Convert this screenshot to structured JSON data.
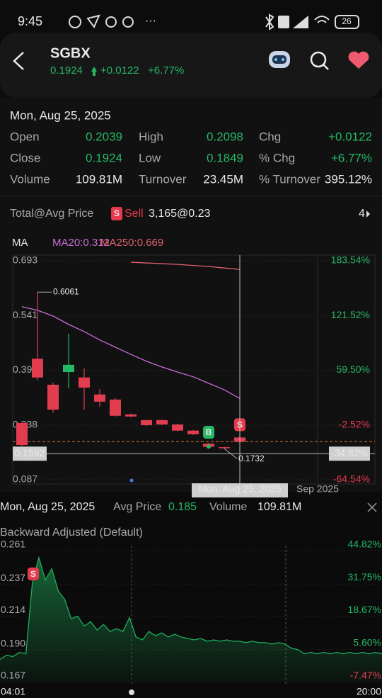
{
  "status_bar": {
    "time": "9:45",
    "battery": "26"
  },
  "header": {
    "symbol": "SGBX",
    "price": "0.1924",
    "change": "+0.0122",
    "change_pct": "+6.77%"
  },
  "quote": {
    "date": "Mon, Aug 25, 2025",
    "rows": [
      [
        [
          "Open",
          "0.2039"
        ],
        [
          "High",
          "0.2098"
        ],
        [
          "Chg",
          "+0.0122"
        ]
      ],
      [
        [
          "Close",
          "0.1924"
        ],
        [
          "Low",
          "0.1849"
        ],
        [
          "% Chg",
          "+6.77%"
        ]
      ],
      [
        [
          "Volume",
          "109.81M"
        ],
        [
          "Turnover",
          "23.45M"
        ],
        [
          "% Turnover",
          "395.12%"
        ]
      ]
    ]
  },
  "position": {
    "label": "Total@Avg Price",
    "badge": "S",
    "action": "Sell",
    "value": "3,165@0.23",
    "count": "4"
  },
  "candle_chart": {
    "type": "candlestick",
    "ma_label": "MA",
    "ma20_label": "MA20:0.312",
    "ma250_label": "MA250:0.669",
    "ylim": [
      0.087,
      0.693
    ],
    "yticks": [
      0.087,
      0.238,
      {
        "value": 0.39,
        "label": "0.390"
      },
      0.541,
      0.693
    ],
    "y2lim": [
      -64.54,
      183.54
    ],
    "y2ticks": [
      {
        "value": -64.54,
        "label": "-64.54%"
      },
      {
        "value": -2.52,
        "label": "-2.52%"
      },
      {
        "value": 59.5,
        "label": "59.50%"
      },
      {
        "value": 121.52,
        "label": "121.52%"
      },
      {
        "value": 183.54,
        "label": "183.54%"
      }
    ],
    "candles": [
      {
        "open": 0.244,
        "high": 0.248,
        "low": 0.18,
        "close": 0.183
      },
      {
        "open": 0.422,
        "high": 0.6061,
        "low": 0.363,
        "close": 0.37
      },
      {
        "open": 0.35,
        "high": 0.356,
        "low": 0.272,
        "close": 0.281
      },
      {
        "open": 0.385,
        "high": 0.491,
        "low": 0.34,
        "close": 0.405
      },
      {
        "open": 0.37,
        "high": 0.395,
        "low": 0.281,
        "close": 0.342
      },
      {
        "open": 0.323,
        "high": 0.338,
        "low": 0.289,
        "close": 0.303
      },
      {
        "open": 0.309,
        "high": 0.313,
        "low": 0.262,
        "close": 0.264
      },
      {
        "open": 0.268,
        "high": 0.27,
        "low": 0.26,
        "close": 0.262
      },
      {
        "open": 0.252,
        "high": 0.254,
        "low": 0.236,
        "close": 0.238
      },
      {
        "open": 0.252,
        "high": 0.254,
        "low": 0.238,
        "close": 0.24
      },
      {
        "open": 0.24,
        "high": 0.242,
        "low": 0.221,
        "close": 0.223
      },
      {
        "open": 0.223,
        "high": 0.225,
        "low": 0.211,
        "close": 0.213
      },
      {
        "open": 0.187,
        "high": 0.189,
        "low": 0.175,
        "close": 0.178
      },
      {
        "open": 0.177,
        "high": 0.178,
        "low": 0.1732,
        "close": 0.176
      },
      {
        "open": 0.2039,
        "high": 0.2098,
        "low": 0.1849,
        "close": 0.1924
      }
    ],
    "ma20": [
      0.566,
      0.556,
      0.54,
      0.517,
      0.497,
      0.474,
      0.454,
      0.434,
      0.415,
      0.399,
      0.385,
      0.372,
      0.354,
      0.336,
      0.312
    ],
    "ma250": [
      null,
      null,
      null,
      null,
      null,
      null,
      null,
      0.689,
      0.687,
      0.685,
      0.683,
      0.68,
      0.677,
      0.673,
      0.669
    ],
    "ma20_color": "#c86dd7",
    "ma250_color": "#e0606e",
    "buy_marker": "B",
    "sell_marker": "S",
    "price_line": 0.1924,
    "crosshair": {
      "price": 0.1592,
      "pct": "-34.82%",
      "date": "Mon, Aug 25, 2025"
    },
    "x_labels": [
      "Sep 2025"
    ]
  },
  "intraday": {
    "type": "area",
    "date": "Mon, Aug 25, 2025",
    "avg_label": "Avg Price",
    "avg_value": "0.185",
    "volume_label": "Volume",
    "volume_value": "109.81M",
    "adjust_label": "Backward Adjusted (Default)",
    "ylim": [
      0.167,
      0.261
    ],
    "yticks": [
      0.167,
      {
        "value": 0.19,
        "label": "0.190"
      },
      0.214,
      0.237,
      0.261
    ],
    "y2lim": [
      -7.47,
      44.82
    ],
    "y2ticks": [
      {
        "value": -7.47,
        "label": "-7.47%"
      },
      {
        "value": 5.6,
        "label": "5.60%"
      },
      {
        "value": 18.67,
        "label": "18.67%"
      },
      {
        "value": 31.75,
        "label": "31.75%"
      },
      {
        "value": 44.82,
        "label": "44.82%"
      }
    ],
    "values": [
      0.183,
      0.186,
      0.185,
      0.188,
      0.187,
      0.238,
      0.256,
      0.24,
      0.248,
      0.232,
      0.226,
      0.212,
      0.214,
      0.207,
      0.21,
      0.204,
      0.208,
      0.203,
      0.205,
      0.203,
      0.213,
      0.199,
      0.197,
      0.203,
      0.2,
      0.202,
      0.199,
      0.201,
      0.199,
      0.198,
      0.197,
      0.198,
      0.196,
      0.197,
      0.196,
      0.197,
      0.196,
      0.196,
      0.195,
      0.196,
      0.195,
      0.195,
      0.194,
      0.195,
      0.194,
      0.191,
      0.19,
      0.187,
      0.188,
      0.187,
      0.188,
      0.187,
      0.188,
      0.187,
      0.188,
      0.187,
      0.188,
      0.187,
      0.188,
      0.187
    ],
    "color": "#1fae5b",
    "x_labels": [
      "04:01",
      "20:00"
    ],
    "sell_marker": "S"
  }
}
